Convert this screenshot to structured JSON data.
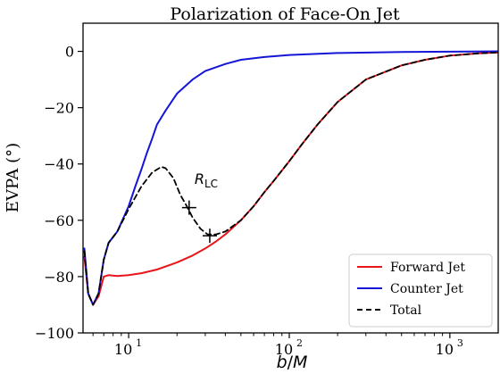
{
  "chart_data": {
    "type": "line",
    "title": "Polarization of Face-On Jet",
    "xlabel": "b/M",
    "ylabel": "EVPA (°)",
    "xscale": "log",
    "xlim": [
      5.2,
      2000
    ],
    "ylim": [
      -100,
      10
    ],
    "x_ticks": [
      {
        "value": 10,
        "label": "10",
        "sup": "1"
      },
      {
        "value": 100,
        "label": "10",
        "sup": "2"
      },
      {
        "value": 1000,
        "label": "10",
        "sup": "3"
      }
    ],
    "y_ticks": [
      0,
      -20,
      -40,
      -60,
      -80,
      -100
    ],
    "legend_position": "bottom-right",
    "series": [
      {
        "name": "Forward Jet",
        "color": "#e8151b",
        "dash": "solid",
        "points": [
          [
            5.3,
            -73
          ],
          [
            5.6,
            -86
          ],
          [
            6.0,
            -90
          ],
          [
            6.5,
            -87
          ],
          [
            7.0,
            -80
          ],
          [
            7.5,
            -79.5
          ],
          [
            8.5,
            -79.8
          ],
          [
            10,
            -79.5
          ],
          [
            12,
            -78.8
          ],
          [
            15,
            -77.5
          ],
          [
            20,
            -75
          ],
          [
            25,
            -72.5
          ],
          [
            30,
            -70
          ],
          [
            35,
            -67.5
          ],
          [
            40,
            -65
          ],
          [
            50,
            -60
          ],
          [
            60,
            -55
          ],
          [
            70,
            -50
          ],
          [
            80,
            -46
          ],
          [
            100,
            -39
          ],
          [
            120,
            -33
          ],
          [
            150,
            -26
          ],
          [
            200,
            -18
          ],
          [
            300,
            -10
          ],
          [
            500,
            -5
          ],
          [
            700,
            -3
          ],
          [
            1000,
            -1.5
          ],
          [
            1500,
            -0.7
          ],
          [
            2000,
            -0.4
          ]
        ]
      },
      {
        "name": "Counter Jet",
        "color": "#1515d8",
        "dash": "solid",
        "points": [
          [
            5.3,
            -70
          ],
          [
            5.6,
            -86
          ],
          [
            6.0,
            -90
          ],
          [
            6.5,
            -86
          ],
          [
            7.0,
            -74
          ],
          [
            7.5,
            -68
          ],
          [
            8.5,
            -64
          ],
          [
            10,
            -55
          ],
          [
            11,
            -48
          ],
          [
            12,
            -42
          ],
          [
            13,
            -36
          ],
          [
            14,
            -31
          ],
          [
            15,
            -26
          ],
          [
            17,
            -21
          ],
          [
            20,
            -15
          ],
          [
            25,
            -10
          ],
          [
            30,
            -7
          ],
          [
            40,
            -4.5
          ],
          [
            50,
            -3
          ],
          [
            70,
            -2
          ],
          [
            100,
            -1.3
          ],
          [
            200,
            -0.6
          ],
          [
            500,
            -0.2
          ],
          [
            1000,
            -0.1
          ],
          [
            2000,
            0
          ]
        ]
      },
      {
        "name": "Total",
        "color": "#000000",
        "dash": "dashed",
        "points": [
          [
            5.3,
            -71
          ],
          [
            5.6,
            -86
          ],
          [
            6.0,
            -90
          ],
          [
            6.5,
            -86
          ],
          [
            7.0,
            -74
          ],
          [
            7.5,
            -68
          ],
          [
            8.5,
            -64
          ],
          [
            10,
            -56
          ],
          [
            12,
            -48
          ],
          [
            14,
            -43
          ],
          [
            16,
            -41
          ],
          [
            17,
            -41.5
          ],
          [
            19,
            -45
          ],
          [
            21,
            -51
          ],
          [
            23,
            -55
          ],
          [
            25,
            -59
          ],
          [
            28,
            -63
          ],
          [
            31,
            -65
          ],
          [
            35,
            -65
          ],
          [
            40,
            -64
          ],
          [
            50,
            -60
          ],
          [
            60,
            -55
          ],
          [
            70,
            -50
          ],
          [
            80,
            -46
          ],
          [
            100,
            -39
          ],
          [
            120,
            -33
          ],
          [
            150,
            -26
          ],
          [
            200,
            -18
          ],
          [
            300,
            -10
          ],
          [
            500,
            -5
          ],
          [
            700,
            -3
          ],
          [
            1000,
            -1.5
          ],
          [
            1500,
            -0.7
          ],
          [
            2000,
            -0.4
          ]
        ]
      }
    ],
    "annotations": [
      {
        "text": "R",
        "subscript": "LC",
        "x": 23.8,
        "y": -47
      }
    ],
    "markers": [
      {
        "shape": "plus",
        "x": 23.8,
        "y": -55.5
      },
      {
        "shape": "plus",
        "x": 32,
        "y": -65.5
      }
    ]
  }
}
